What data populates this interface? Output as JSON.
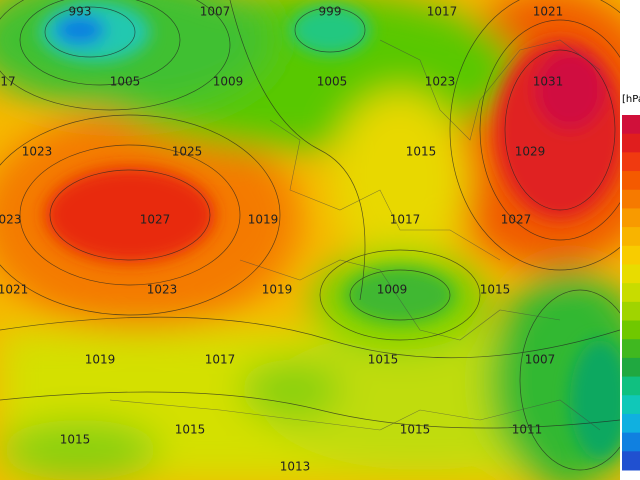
{
  "map": {
    "unit_label": "[hPa",
    "contour_labels": [
      "993",
      "1007",
      "999",
      "1017",
      "1021",
      "17",
      "1005",
      "1009",
      "1005",
      "1023",
      "1031",
      "1023",
      "1025",
      "1015",
      "1029",
      "023",
      "1027",
      "1019",
      "1017",
      "1027",
      "1021",
      "1023",
      "1019",
      "1009",
      "1015",
      "1019",
      "1017",
      "1015",
      "1007",
      "1015",
      "1015",
      "1015",
      "1011",
      "1013"
    ]
  }
}
